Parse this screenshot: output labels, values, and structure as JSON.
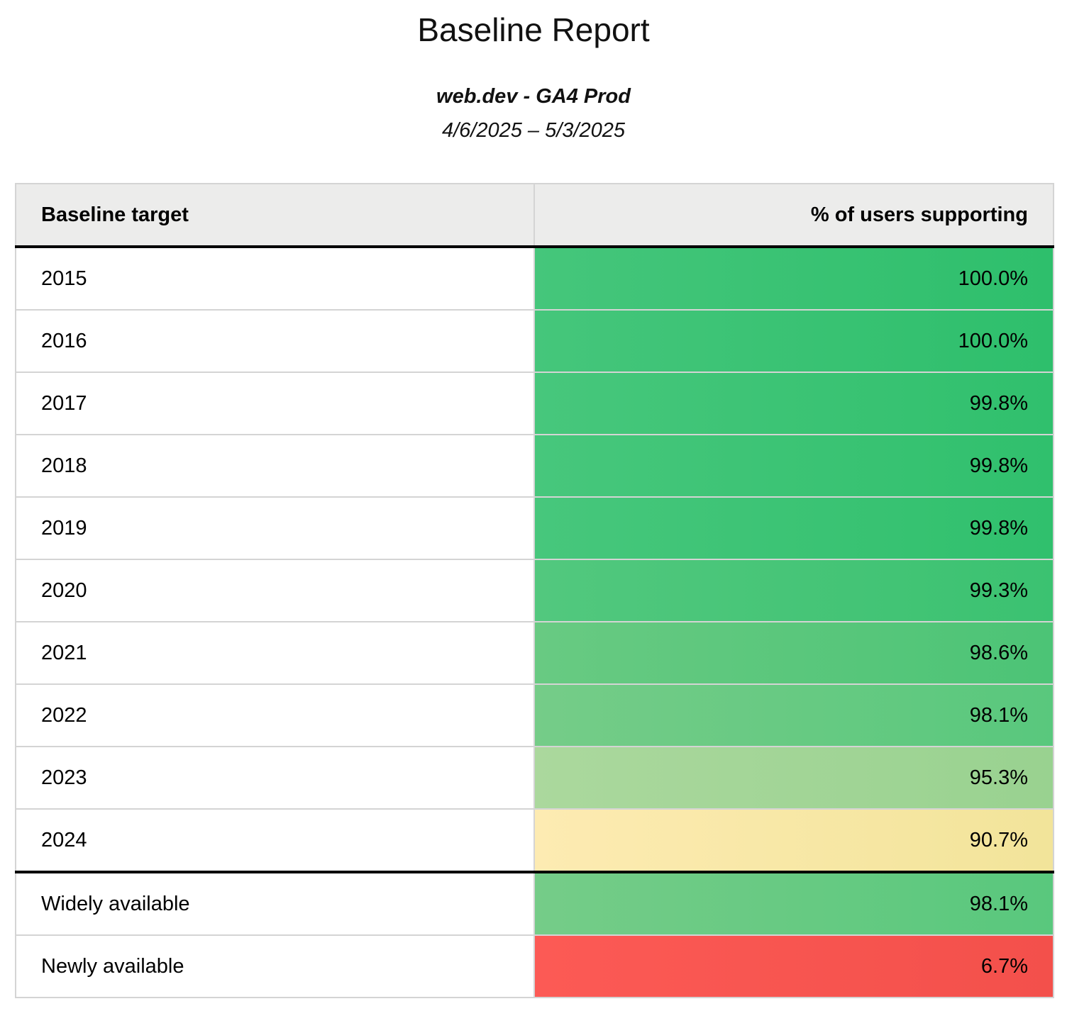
{
  "report": {
    "title": "Baseline Report",
    "subtitle": "web.dev - GA4 Prod",
    "date_range": "4/6/2025 – 5/3/2025"
  },
  "table": {
    "columns": [
      {
        "label": "Baseline target",
        "align": "left"
      },
      {
        "label": "% of users supporting",
        "align": "right"
      }
    ],
    "rows": [
      {
        "target": "2015",
        "value": "100.0%",
        "color_left": "#45c67b",
        "color_right": "#2ebf6c",
        "separator_above": false
      },
      {
        "target": "2016",
        "value": "100.0%",
        "color_left": "#45c67b",
        "color_right": "#2ebf6c",
        "separator_above": false
      },
      {
        "target": "2017",
        "value": "99.8%",
        "color_left": "#47c77c",
        "color_right": "#30c06d",
        "separator_above": false
      },
      {
        "target": "2018",
        "value": "99.8%",
        "color_left": "#47c77c",
        "color_right": "#30c06d",
        "separator_above": false
      },
      {
        "target": "2019",
        "value": "99.8%",
        "color_left": "#47c77c",
        "color_right": "#30c06d",
        "separator_above": false
      },
      {
        "target": "2020",
        "value": "99.3%",
        "color_left": "#52c87e",
        "color_right": "#3bc271",
        "separator_above": false
      },
      {
        "target": "2021",
        "value": "98.6%",
        "color_left": "#68ca82",
        "color_right": "#4cc476",
        "separator_above": false
      },
      {
        "target": "2022",
        "value": "98.1%",
        "color_left": "#75cc88",
        "color_right": "#59c87d",
        "separator_above": false
      },
      {
        "target": "2023",
        "value": "95.3%",
        "color_left": "#abd89d",
        "color_right": "#99d290",
        "separator_above": false
      },
      {
        "target": "2024",
        "value": "90.7%",
        "color_left": "#fdebb2",
        "color_right": "#f2e49a",
        "separator_above": false
      },
      {
        "target": "Widely available",
        "value": "98.1%",
        "color_left": "#75cc88",
        "color_right": "#59c87d",
        "separator_above": true
      },
      {
        "target": "Newly available",
        "value": "6.7%",
        "color_left": "#fc5a55",
        "color_right": "#f3504b",
        "separator_above": false
      }
    ]
  },
  "colors": {
    "header_background": "#ececeb",
    "grid_border": "#d4d4d4",
    "separator_black": "#000000",
    "text": "#111111"
  },
  "chart_data": {
    "type": "table",
    "title": "Baseline Report",
    "subtitle": "web.dev - GA4 Prod",
    "date_range": "4/6/2025 – 5/3/2025",
    "columns": [
      "Baseline target",
      "% of users supporting"
    ],
    "categories": [
      "2015",
      "2016",
      "2017",
      "2018",
      "2019",
      "2020",
      "2021",
      "2022",
      "2023",
      "2024",
      "Widely available",
      "Newly available"
    ],
    "values": [
      100.0,
      100.0,
      99.8,
      99.8,
      99.8,
      99.3,
      98.6,
      98.1,
      95.3,
      90.7,
      98.1,
      6.7
    ],
    "value_format": "percent",
    "color_scale": "red-yellow-green heatmap on value column",
    "legend_position": "none",
    "grid": true
  }
}
